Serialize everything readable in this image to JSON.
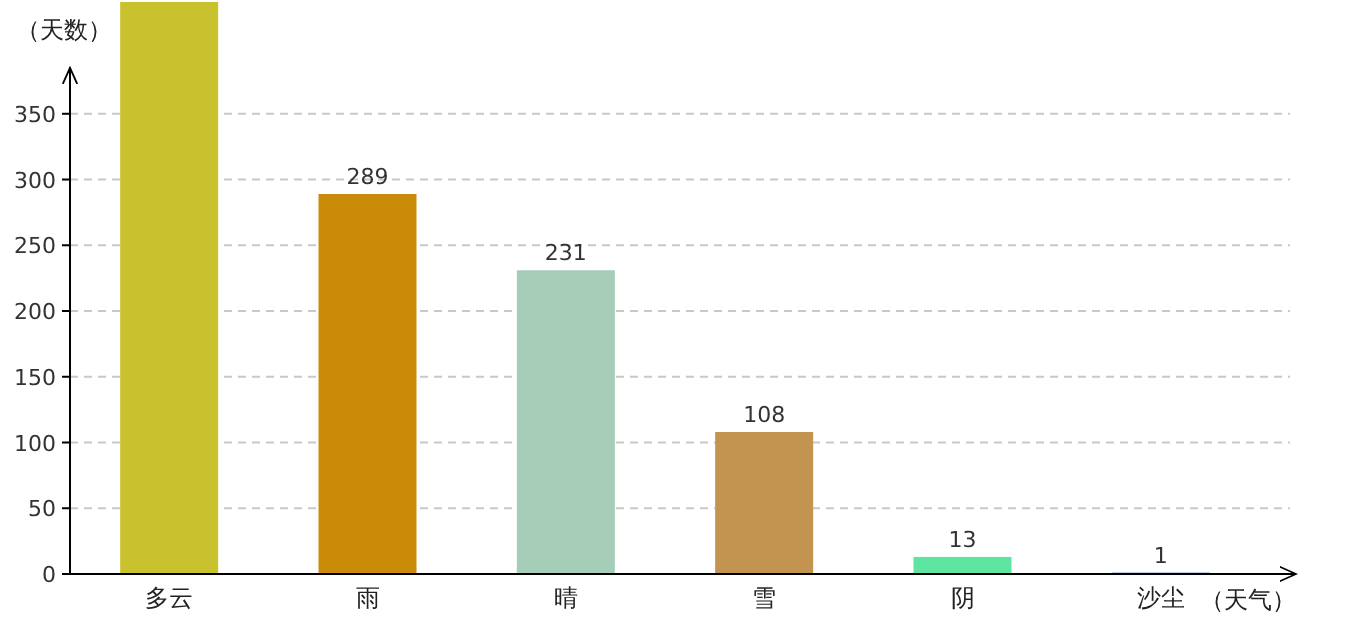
{
  "chart_data": {
    "type": "bar",
    "ylabel": "（天数）",
    "xlabel": "（天气）",
    "categories": [
      "多云",
      "雨",
      "晴",
      "雪",
      "阴",
      "沙尘"
    ],
    "values": [
      435,
      289,
      231,
      108,
      13,
      1
    ],
    "colors": [
      "#c9c22e",
      "#c98b08",
      "#a6cdb8",
      "#c2944f",
      "#5ee6a0",
      "#2a5caa"
    ],
    "value_labels": [
      null,
      "289",
      "231",
      "108",
      "13",
      "1"
    ],
    "ylim": [
      0,
      435
    ],
    "yticks": [
      0,
      50,
      100,
      150,
      200,
      250,
      300,
      350
    ],
    "grid": "y"
  }
}
